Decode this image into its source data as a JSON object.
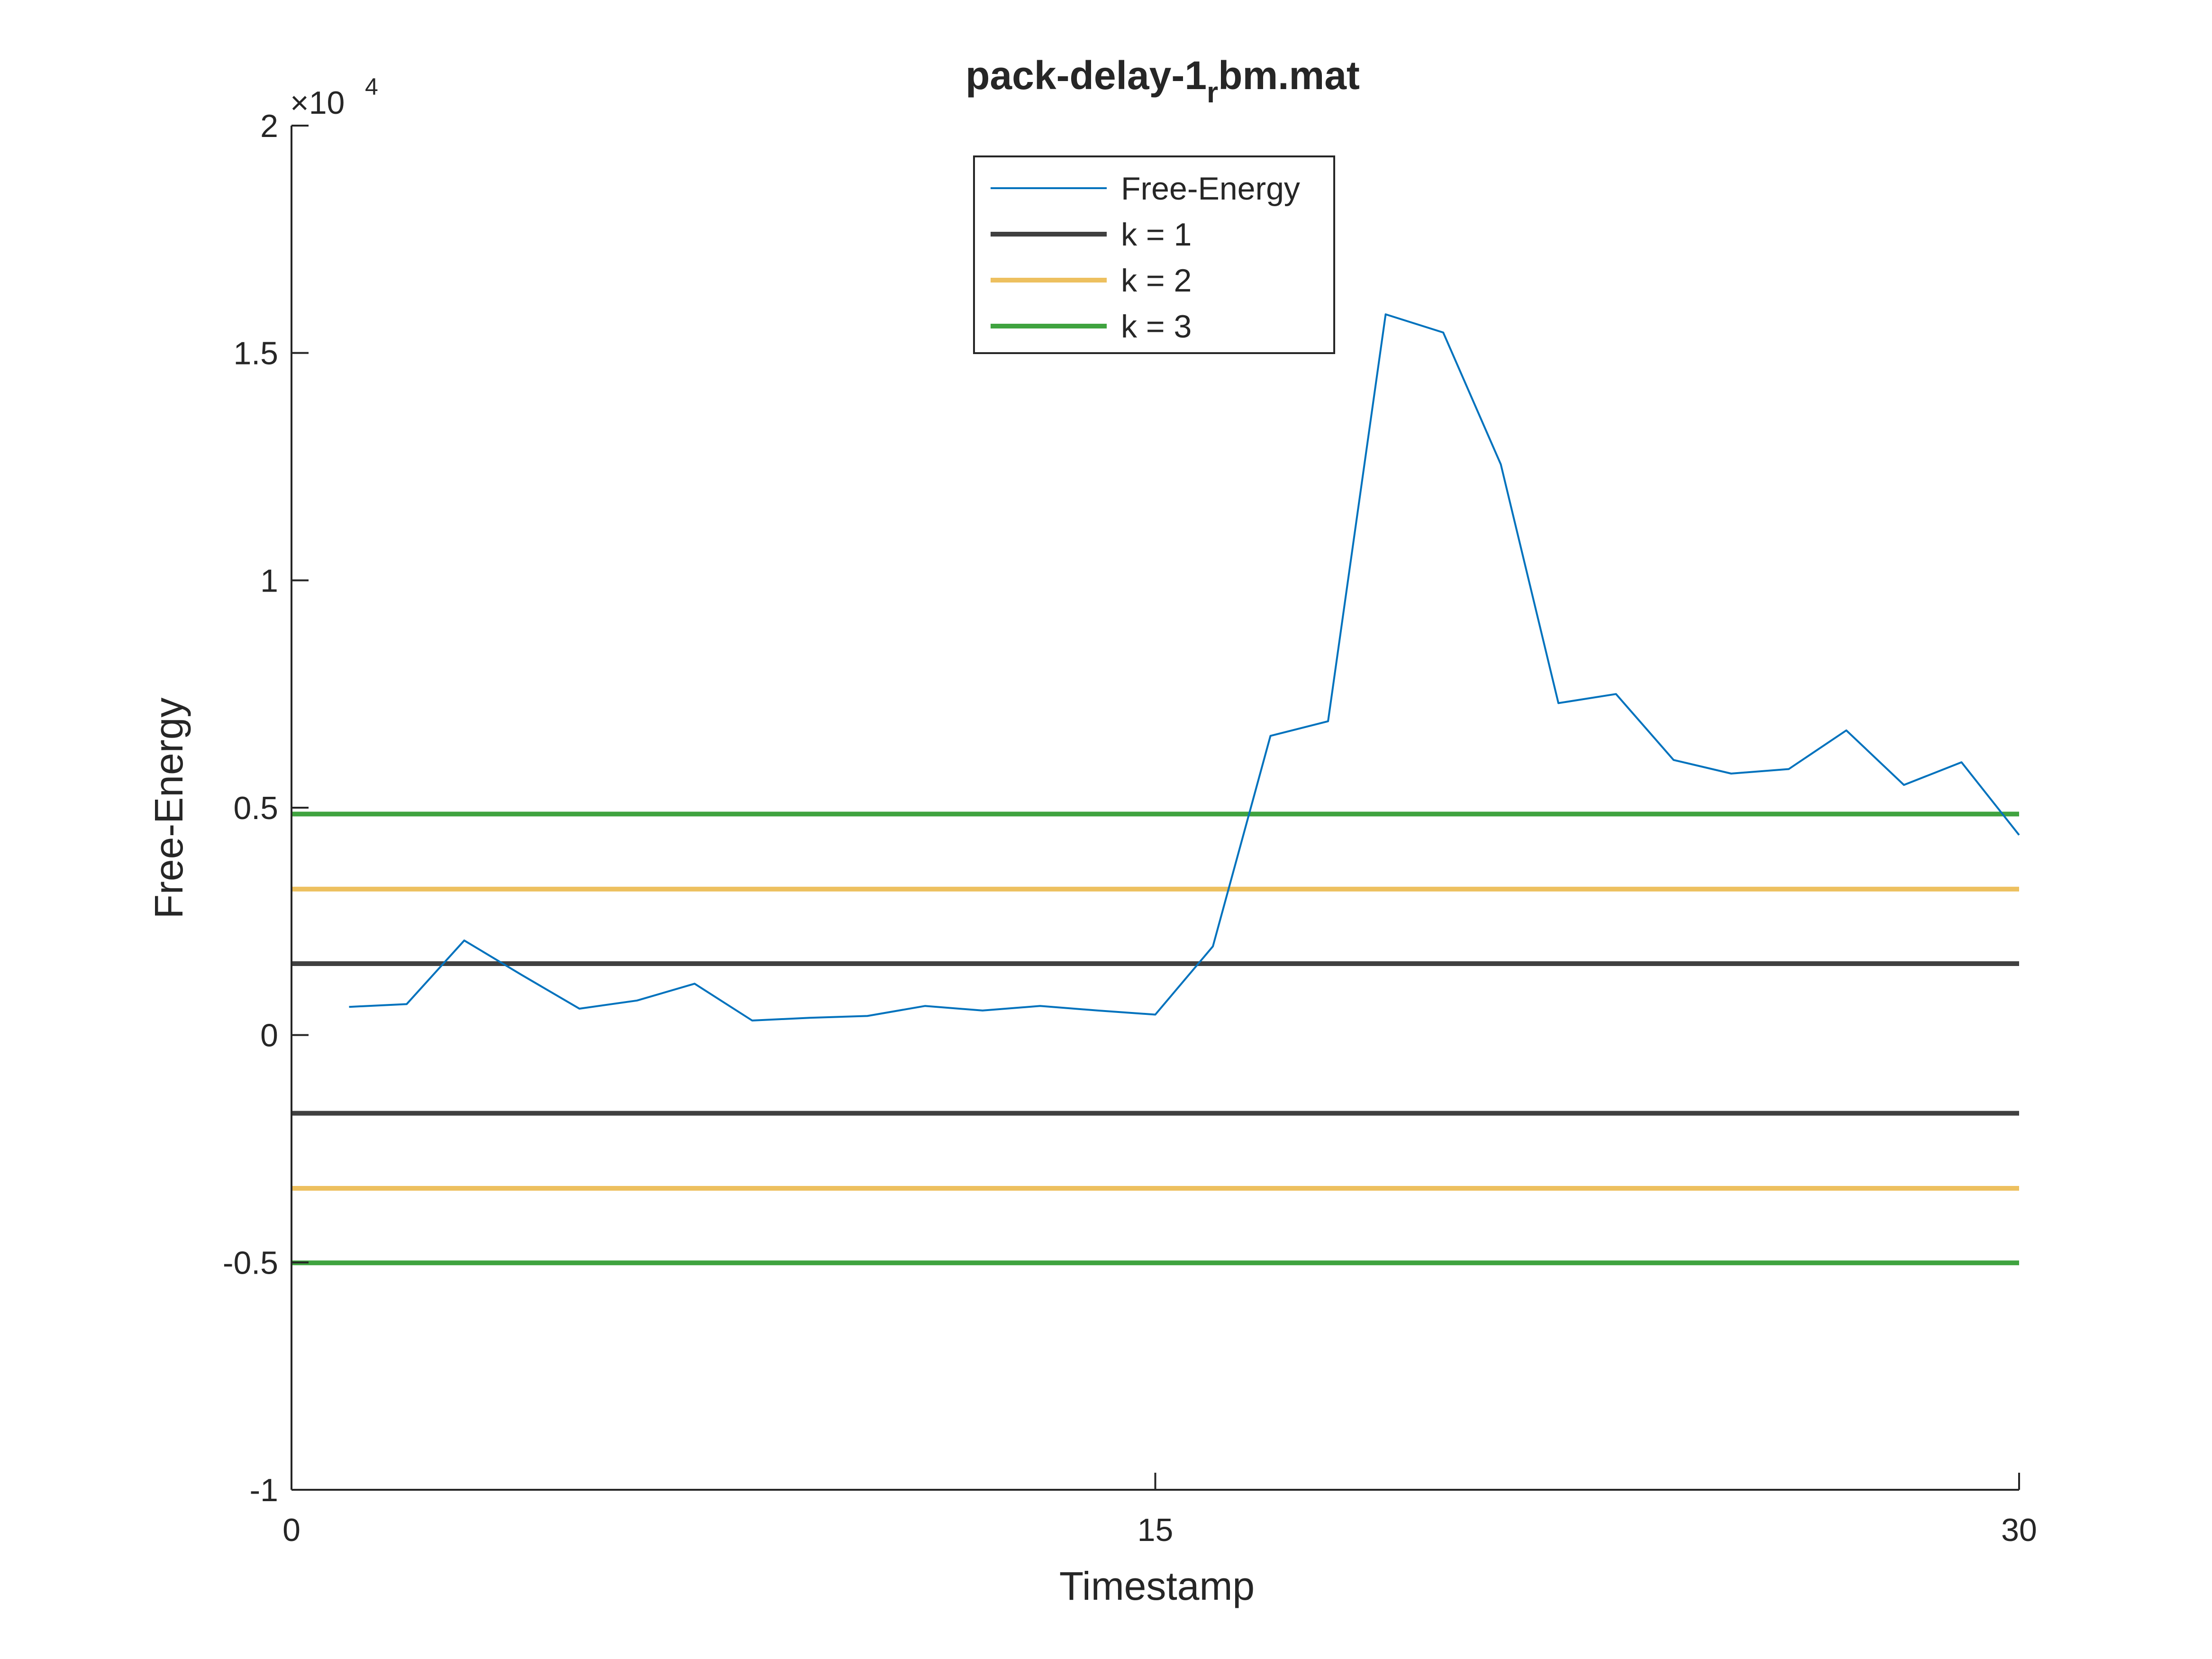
{
  "chart_data": {
    "type": "line",
    "title_main": "pack-delay-1",
    "title_sub": "r",
    "title_tail": "bm.mat",
    "xlabel": "Timestamp",
    "ylabel": "Free-Energy",
    "xlim": [
      0,
      30
    ],
    "ylim": [
      -10000,
      20000
    ],
    "x_ticks": [
      0,
      15,
      30
    ],
    "x_tick_labels": [
      "0",
      "15",
      "30"
    ],
    "y_ticks": [
      -10000,
      -5000,
      0,
      5000,
      10000,
      15000,
      20000
    ],
    "y_tick_labels": [
      "-1",
      "-0.5",
      "0",
      "0.5",
      "1",
      "1.5",
      "2"
    ],
    "y_exponent_base": "×10",
    "y_exponent_power": "4",
    "grid": false,
    "legend_position": "top-center",
    "series": [
      {
        "name": "Free-Energy",
        "color": "#0072bd",
        "x": [
          1,
          2,
          3,
          4,
          5,
          6,
          7,
          8,
          9,
          10,
          11,
          12,
          13,
          14,
          15,
          16,
          17,
          18,
          19,
          20,
          21,
          22,
          23,
          24,
          25,
          26,
          27,
          28,
          29,
          30
        ],
        "y": [
          620,
          680,
          2080,
          1320,
          580,
          760,
          1130,
          320,
          380,
          420,
          640,
          540,
          640,
          540,
          450,
          1950,
          6580,
          6900,
          15850,
          15450,
          12550,
          7300,
          7500,
          6050,
          5750,
          5850,
          6700,
          5500,
          6000,
          4400
        ]
      },
      {
        "name": "k = 1",
        "color": "#404040",
        "x": [
          0,
          30
        ],
        "y": [
          1570,
          1570
        ]
      },
      {
        "name": "k = 1",
        "color": "#404040",
        "x": [
          0,
          30
        ],
        "y": [
          -1720,
          -1720
        ],
        "legend": false
      },
      {
        "name": "k = 2",
        "color": "#edc05f",
        "x": [
          0,
          30
        ],
        "y": [
          3210,
          3210
        ]
      },
      {
        "name": "k = 2",
        "color": "#edc05f",
        "x": [
          0,
          30
        ],
        "y": [
          -3370,
          -3370
        ],
        "legend": false
      },
      {
        "name": "k = 3",
        "color": "#3fa33f",
        "x": [
          0,
          30
        ],
        "y": [
          4860,
          4860
        ]
      },
      {
        "name": "k = 3",
        "color": "#3fa33f",
        "x": [
          0,
          30
        ],
        "y": [
          -5010,
          -5010
        ],
        "legend": false
      }
    ]
  }
}
